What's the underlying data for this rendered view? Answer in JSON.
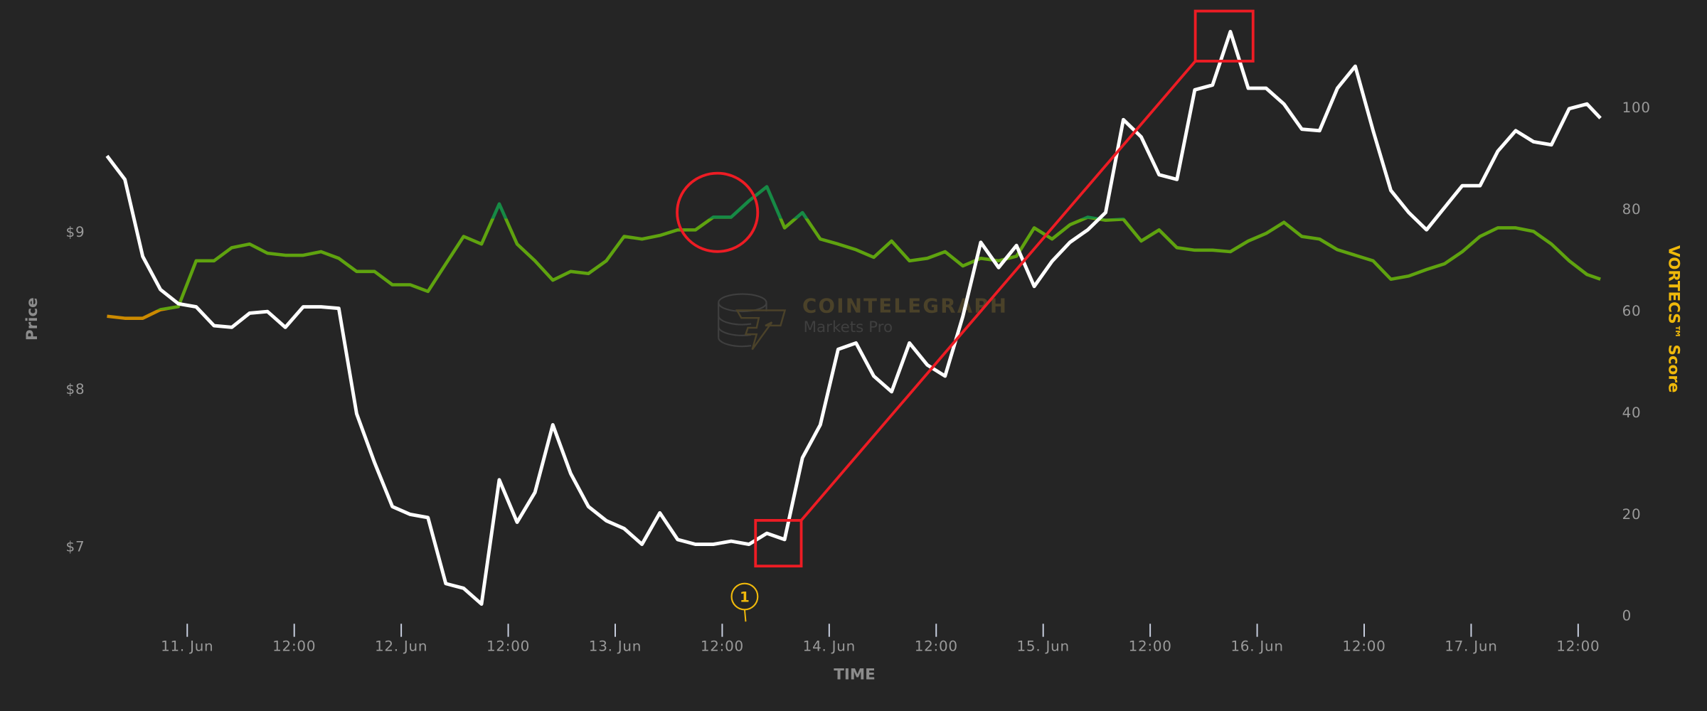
{
  "watermark": {
    "brand": "COINTELEGRAPH",
    "product": "Markets Pro"
  },
  "chart_data": {
    "type": "line",
    "title": "",
    "xlabel": "TIME",
    "ylabel_left": "Price",
    "ylabel_right": "VORTECS™ Score",
    "x_ticks": [
      "11. Jun",
      "12:00",
      "12. Jun",
      "12:00",
      "13. Jun",
      "12:00",
      "14. Jun",
      "12:00",
      "15. Jun",
      "12:00",
      "16. Jun",
      "12:00",
      "17. Jun",
      "12:00"
    ],
    "y_left_ticks": [
      "$7",
      "$8",
      "$9"
    ],
    "y_right_ticks": [
      "0",
      "20",
      "40",
      "60",
      "80",
      "100"
    ],
    "y_left_range": [
      6.56,
      10.47
    ],
    "y_right_range": [
      0,
      121
    ],
    "grid": false,
    "x": [
      "10 Jun 15:00",
      "10 Jun 17:00",
      "10 Jun 19:00",
      "10 Jun 21:00",
      "10 Jun 23:00",
      "11 Jun 01:00",
      "11 Jun 03:00",
      "11 Jun 05:00",
      "11 Jun 07:00",
      "11 Jun 09:00",
      "11 Jun 11:00",
      "11 Jun 13:00",
      "11 Jun 15:00",
      "11 Jun 17:00",
      "11 Jun 19:00",
      "11 Jun 21:00",
      "11 Jun 23:00",
      "12 Jun 01:00",
      "12 Jun 03:00",
      "12 Jun 05:00",
      "12 Jun 07:00",
      "12 Jun 09:00",
      "12 Jun 11:00",
      "12 Jun 13:00",
      "12 Jun 15:00",
      "12 Jun 17:00",
      "12 Jun 19:00",
      "12 Jun 21:00",
      "12 Jun 23:00",
      "13 Jun 01:00",
      "13 Jun 03:00",
      "13 Jun 05:00",
      "13 Jun 07:00",
      "13 Jun 09:00",
      "13 Jun 11:00",
      "13 Jun 13:00",
      "13 Jun 15:00",
      "13 Jun 17:00",
      "13 Jun 19:00",
      "13 Jun 21:00",
      "13 Jun 23:00",
      "14 Jun 01:00",
      "14 Jun 03:00",
      "14 Jun 05:00",
      "14 Jun 07:00",
      "14 Jun 09:00",
      "14 Jun 11:00",
      "14 Jun 13:00",
      "14 Jun 15:00",
      "14 Jun 17:00",
      "14 Jun 19:00",
      "14 Jun 21:00",
      "14 Jun 23:00",
      "15 Jun 01:00",
      "15 Jun 03:00",
      "15 Jun 05:00",
      "15 Jun 07:00",
      "15 Jun 09:00",
      "15 Jun 11:00",
      "15 Jun 13:00",
      "15 Jun 15:00",
      "15 Jun 17:00",
      "15 Jun 19:00",
      "15 Jun 21:00",
      "15 Jun 23:00",
      "16 Jun 01:00",
      "16 Jun 03:00",
      "16 Jun 05:00",
      "16 Jun 07:00",
      "16 Jun 09:00",
      "16 Jun 11:00",
      "16 Jun 13:00",
      "16 Jun 15:00",
      "16 Jun 17:00",
      "16 Jun 19:00",
      "16 Jun 21:00",
      "16 Jun 23:00",
      "17 Jun 01:00",
      "17 Jun 03:00",
      "17 Jun 05:00",
      "17 Jun 07:00",
      "17 Jun 09:00",
      "17 Jun 11:00",
      "17 Jun 13:00",
      "17 Jun 14:30"
    ],
    "series": [
      {
        "axis": "left",
        "color": "#ffffff",
        "values": [
          9.48,
          9.33,
          8.84,
          8.63,
          8.54,
          8.52,
          8.4,
          8.39,
          8.48,
          8.49,
          8.39,
          8.52,
          8.52,
          8.51,
          7.84,
          7.53,
          7.25,
          7.2,
          7.18,
          6.76,
          6.73,
          6.63,
          7.42,
          7.15,
          7.34,
          7.77,
          7.46,
          7.25,
          7.16,
          7.11,
          7.01,
          7.21,
          7.04,
          7.01,
          7.01,
          7.03,
          7.01,
          7.08,
          7.04,
          7.56,
          7.77,
          8.25,
          8.29,
          8.08,
          7.98,
          8.29,
          8.15,
          8.08,
          8.46,
          8.93,
          8.77,
          8.91,
          8.65,
          8.81,
          8.93,
          9.01,
          9.12,
          9.71,
          9.6,
          9.36,
          9.33,
          9.9,
          9.93,
          10.27,
          9.91,
          9.91,
          9.81,
          9.65,
          9.64,
          9.91,
          10.05,
          9.64,
          9.26,
          9.12,
          9.01,
          9.15,
          9.29,
          9.29,
          9.51,
          9.64,
          9.57,
          9.55,
          9.78,
          9.81,
          9.72
        ]
      },
      {
        "axis": "right",
        "color_low": "#cc8a00",
        "color_mid": "#5fa30f",
        "color_high": "#168a45",
        "values": [
          58.8,
          58.4,
          58.4,
          60.1,
          60.7,
          69.7,
          69.7,
          72.3,
          73.0,
          71.2,
          70.8,
          70.8,
          71.5,
          70.2,
          67.6,
          67.6,
          65.0,
          65.0,
          63.7,
          69.1,
          74.5,
          73.0,
          80.9,
          73.0,
          69.7,
          65.9,
          67.6,
          67.2,
          69.7,
          74.5,
          74.0,
          74.7,
          75.8,
          75.8,
          78.3,
          78.3,
          81.5,
          84.3,
          76.2,
          79.2,
          74.0,
          73.0,
          71.9,
          70.4,
          73.6,
          69.7,
          70.2,
          71.5,
          68.7,
          70.2,
          69.7,
          70.6,
          76.2,
          74.0,
          76.8,
          78.3,
          77.7,
          77.9,
          73.6,
          75.8,
          72.3,
          71.8,
          71.8,
          71.5,
          73.6,
          75.1,
          77.3,
          74.5,
          74.0,
          71.9,
          70.8,
          69.7,
          66.1,
          66.7,
          68.0,
          69.1,
          71.5,
          74.5,
          76.2,
          76.2,
          75.5,
          73.0,
          69.7,
          67.0,
          66.1
        ]
      }
    ],
    "thresholds": [
      60,
      78
    ],
    "annotations": {
      "flag_label": "1",
      "highlight_color": "#ed1c24",
      "flag_color": "#f0b90b"
    }
  },
  "colors": {
    "background": "#252525",
    "right_axis_title": "#f0b90b",
    "tick": "#9a9a9a"
  }
}
